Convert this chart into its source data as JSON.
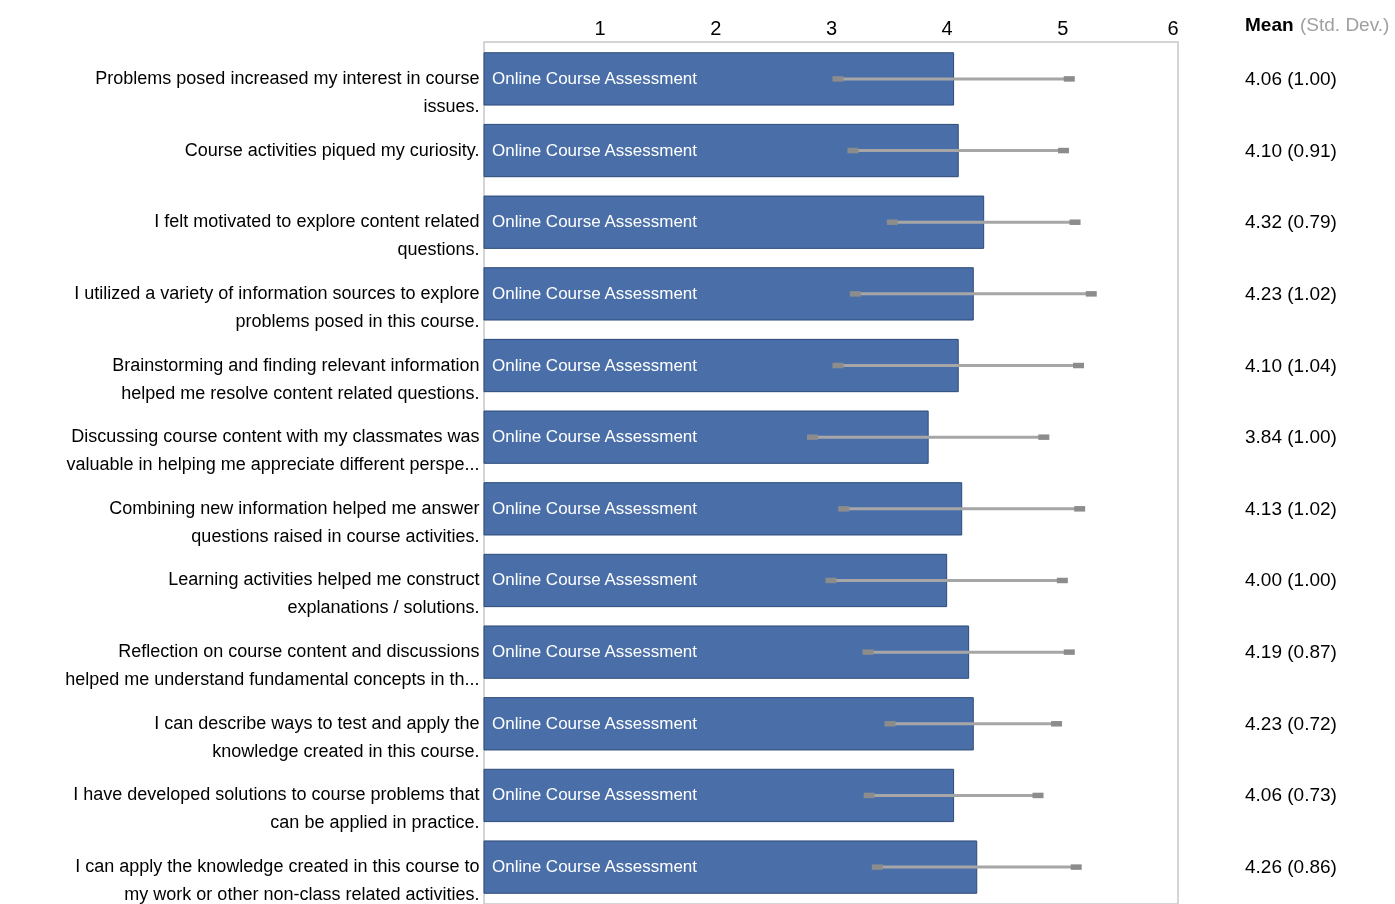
{
  "chart_data": {
    "type": "bar",
    "orientation": "horizontal",
    "categories": [
      "Problems posed increased my interest in course\nissues.",
      "Course activities piqued my curiosity.",
      "I felt motivated to explore content related\nquestions.",
      "I utilized a variety of information sources to explore\nproblems posed in this course.",
      "Brainstorming and finding relevant information\nhelped me resolve content related questions.",
      "Discussing course content with my classmates was\nvaluable in helping me appreciate different perspe...",
      "Combining new information helped me answer\nquestions raised in course activities.",
      "Learning activities helped me construct\nexplanations / solutions.",
      "Reflection on course content and discussions\nhelped me understand fundamental concepts in th...",
      "I can describe ways to test and apply the\nknowledge created in this course.",
      "I have developed solutions to course problems that\ncan be applied in practice.",
      "I can apply the knowledge created in this course to\nmy work or other non-class related activities."
    ],
    "series": [
      {
        "name": "Online Course Assessment",
        "color": "#4a6fa8",
        "values": [
          4.06,
          4.1,
          4.32,
          4.23,
          4.1,
          3.84,
          4.13,
          4.0,
          4.19,
          4.23,
          4.06,
          4.26
        ],
        "errors": [
          1.0,
          0.91,
          0.79,
          1.02,
          1.04,
          1.0,
          1.02,
          1.0,
          0.87,
          0.72,
          0.73,
          0.86
        ]
      }
    ],
    "value_labels": [
      "4.06 (1.00)",
      "4.10 (0.91)",
      "4.32 (0.79)",
      "4.23 (1.02)",
      "4.10 (1.04)",
      "3.84 (1.00)",
      "4.13 (1.02)",
      "4.00 (1.00)",
      "4.19 (0.87)",
      "4.23 (0.72)",
      "4.06 (0.73)",
      "4.26 (0.86)"
    ],
    "xlim": [
      0,
      6
    ],
    "xticks": [
      1,
      2,
      3,
      4,
      5,
      6
    ],
    "annotations": [
      "Mean",
      "(Std. Dev.)"
    ]
  }
}
